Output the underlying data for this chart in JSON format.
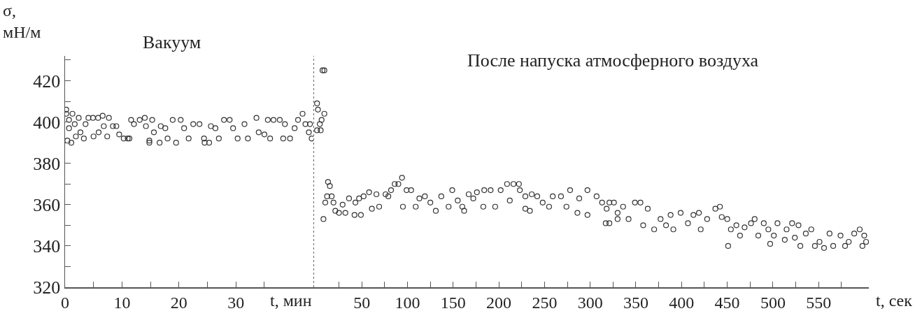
{
  "chart_data": [
    {
      "type": "scatter",
      "ylabel": "σ,\nмН/м",
      "xlabel": "t, мин",
      "annotations": [
        "Вакуум"
      ],
      "marker": "circle",
      "color": "#333333",
      "tick_labels": "xy",
      "xlim": [
        0,
        43.6
      ],
      "xticks": [
        0,
        {
          "value": 5,
          "label": null
        },
        10,
        {
          "value": 15,
          "label": null
        },
        20,
        {
          "value": 25,
          "label": null
        },
        30,
        {
          "value": 35,
          "label": null
        }
      ],
      "ylim": [
        320,
        432
      ],
      "yticks": [
        320,
        {
          "value": 330,
          "label": null
        },
        340,
        {
          "value": 350,
          "label": null
        },
        360,
        {
          "value": 370,
          "label": null
        },
        380,
        {
          "value": 390,
          "label": null
        },
        400,
        {
          "value": 410,
          "label": null
        },
        420,
        {
          "value": 430,
          "label": null
        }
      ],
      "x": [
        0.2,
        0.2,
        0.4,
        1.1,
        0.7,
        0.7,
        1.3,
        1.7,
        1.9,
        2.4,
        2.7,
        3.3,
        3.6,
        4.1,
        4.9,
        5.8,
        6.6,
        5.0,
        5.9,
        6.8,
        7.7,
        7.4,
        8.4,
        9.0,
        9.5,
        10.3,
        11.0,
        11.3,
        11.6,
        12.1,
        13.1,
        14.0,
        14.2,
        14.8,
        14.8,
        15.3,
        15.6,
        16.6,
        16.8,
        17.6,
        18.0,
        18.9,
        19.5,
        20.3,
        20.9,
        21.7,
        22.5,
        23.6,
        24.4,
        24.5,
        25.3,
        25.6,
        26.4,
        27.0,
        27.9,
        28.9,
        29.5,
        30.3,
        31.5,
        32.1,
        33.6,
        34.0,
        35.0,
        35.6,
        36.0,
        36.6,
        37.7,
        38.3,
        38.6,
        39.5,
        40.3,
        40.9,
        41.7,
        42.2,
        43.0,
        43.3,
        42.8
      ],
      "values": [
        406,
        404,
        391,
        390,
        401,
        397,
        404,
        399,
        393,
        402,
        395,
        392,
        399,
        402,
        402,
        402,
        403,
        393,
        395,
        398,
        402,
        393,
        398,
        398,
        394,
        392,
        392,
        392,
        401,
        399,
        401,
        402,
        398,
        391,
        390,
        401,
        395,
        390,
        398,
        397,
        392,
        401,
        390,
        401,
        397,
        392,
        399,
        399,
        392,
        390,
        390,
        398,
        397,
        392,
        401,
        401,
        397,
        392,
        399,
        392,
        402,
        395,
        394,
        401,
        392,
        401,
        401,
        392,
        399,
        392,
        397,
        401,
        404,
        399,
        399,
        392,
        395
      ]
    },
    {
      "type": "scatter",
      "xlabel": "t, сек",
      "annotations": [
        "После напуска атмосферного воздуха"
      ],
      "marker": "circle",
      "color": "#333333",
      "tick_labels": "x",
      "ref_lines": [
        {
          "axis": "x",
          "value": -3,
          "line_style": "dotted",
          "color": "#333333"
        }
      ],
      "xlim": [
        -3,
        605
      ],
      "xticks": [
        {
          "value": 25,
          "label": null
        },
        50,
        {
          "value": 75,
          "label": null
        },
        100,
        {
          "value": 125,
          "label": null
        },
        150,
        {
          "value": 175,
          "label": null
        },
        200,
        {
          "value": 225,
          "label": null
        },
        250,
        {
          "value": 275,
          "label": null
        },
        300,
        {
          "value": 325,
          "label": null
        },
        350,
        {
          "value": 375,
          "label": null
        },
        400,
        {
          "value": 425,
          "label": null
        },
        450,
        {
          "value": 475,
          "label": null
        },
        500,
        {
          "value": 525,
          "label": null
        },
        550,
        {
          "value": 575,
          "label": null
        }
      ],
      "ylim": [
        320,
        432
      ],
      "yticks": [
        320,
        340,
        360,
        380,
        400,
        420
      ],
      "x": [
        1,
        2,
        7,
        9,
        4,
        1,
        5,
        6,
        9,
        8,
        13,
        15,
        10,
        12,
        17,
        19,
        21,
        25,
        29,
        32,
        36,
        42,
        43,
        47,
        49,
        52,
        58,
        61,
        66,
        69,
        76,
        79,
        82,
        86,
        90,
        94,
        95,
        99,
        104,
        109,
        113,
        119,
        125,
        131,
        137,
        145,
        149,
        155,
        160,
        162,
        167,
        172,
        176,
        183,
        184,
        191,
        196,
        202,
        209,
        212,
        216,
        222,
        223,
        229,
        229,
        234,
        236,
        242,
        248,
        255,
        259,
        268,
        274,
        278,
        286,
        288,
        297,
        297,
        307,
        313,
        318,
        321,
        326,
        330,
        321,
        317,
        330,
        336,
        342,
        349,
        355,
        358,
        363,
        370,
        377,
        383,
        388,
        391,
        399,
        407,
        413,
        419,
        421,
        428,
        437,
        442,
        444,
        450,
        451,
        454,
        460,
        464,
        469,
        476,
        480,
        484,
        490,
        495,
        497,
        501,
        505,
        513,
        515,
        521,
        524,
        528,
        530,
        536,
        542,
        546,
        551,
        556,
        562,
        566,
        574,
        579,
        583,
        589,
        595,
        598,
        600,
        602
      ],
      "values": [
        409,
        406,
        425,
        425,
        399,
        396,
        396,
        401,
        404,
        353,
        371,
        369,
        361,
        364,
        364,
        361,
        357,
        356,
        360,
        356,
        363,
        355,
        361,
        363,
        355,
        364,
        366,
        358,
        365,
        359,
        365,
        364,
        367,
        370,
        370,
        373,
        359,
        367,
        367,
        359,
        363,
        364,
        361,
        357,
        364,
        359,
        367,
        362,
        359,
        357,
        365,
        363,
        366,
        359,
        367,
        367,
        359,
        367,
        370,
        362,
        370,
        370,
        367,
        364,
        358,
        357,
        365,
        364,
        361,
        359,
        364,
        364,
        359,
        367,
        356,
        363,
        367,
        355,
        364,
        361,
        358,
        351,
        361,
        356,
        361,
        351,
        353,
        359,
        353,
        361,
        361,
        350,
        358,
        348,
        353,
        350,
        355,
        348,
        356,
        351,
        355,
        356,
        348,
        353,
        358,
        359,
        354,
        353,
        340,
        348,
        350,
        345,
        349,
        351,
        353,
        345,
        351,
        348,
        341,
        345,
        351,
        343,
        348,
        351,
        344,
        350,
        340,
        346,
        348,
        340,
        342,
        339,
        346,
        340,
        345,
        340,
        342,
        346,
        348,
        340,
        345,
        342
      ]
    }
  ]
}
